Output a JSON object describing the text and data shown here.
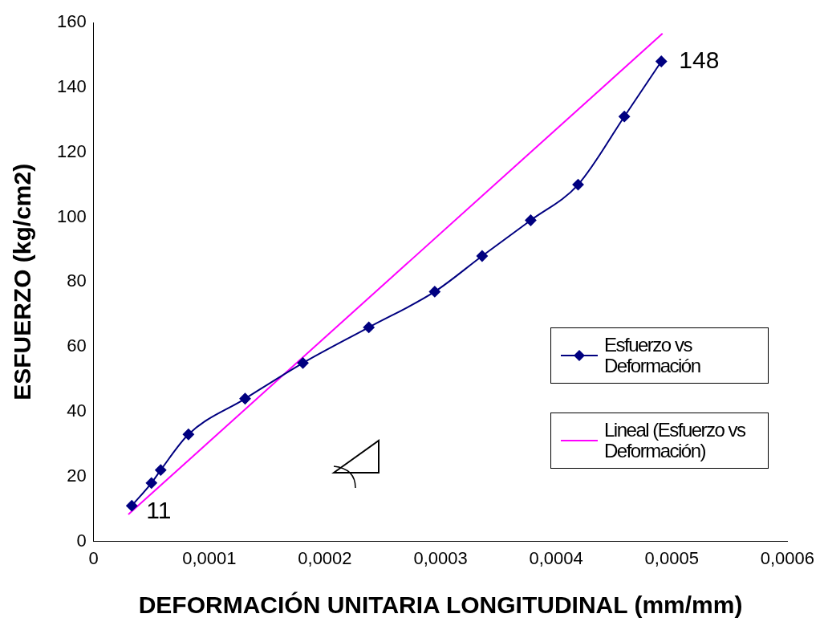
{
  "chart_data": {
    "type": "line",
    "xlabel": "DEFORMACIÓN UNITARIA LONGITUDINAL (mm/mm)",
    "ylabel": "ESFUERZO (kg/cm2)",
    "xlim": [
      0,
      0.0006
    ],
    "xticks": [
      0,
      {
        "value": 0.0001,
        "label": "0,0001"
      },
      {
        "value": 0.0002,
        "label": "0,0002"
      },
      {
        "value": 0.0003,
        "label": "0,0003"
      },
      {
        "value": 0.0004,
        "label": "0,0004"
      },
      {
        "value": 0.0005,
        "label": "0,0005"
      },
      {
        "value": 0.0006,
        "label": "0,0006"
      }
    ],
    "ylim": [
      0,
      160
    ],
    "yticks": [
      0,
      20,
      40,
      60,
      80,
      100,
      120,
      140,
      160
    ],
    "grid": false,
    "legend": "right",
    "series": [
      {
        "name": "Esfuerzo vs Deformación",
        "color": "#000080",
        "marker": "diamond",
        "x": [
          3.3e-05,
          5e-05,
          5.8e-05,
          8.2e-05,
          0.000131,
          0.000181,
          0.000238,
          0.000295,
          0.000336,
          0.000378,
          0.000419,
          0.000459,
          0.000491
        ],
        "values": [
          11,
          18,
          22,
          33,
          44,
          55,
          66,
          77,
          88,
          99,
          110,
          131,
          148
        ]
      },
      {
        "name": "Lineal (Esfuerzo vs Deformación)",
        "color": "#ff00ff",
        "marker": "none",
        "x": [
          3e-05,
          0.000492
        ],
        "values": [
          8.3,
          156.6
        ]
      }
    ],
    "annotations": [
      {
        "text": "11",
        "x": 3.3e-05,
        "y": 11
      },
      {
        "text": "148",
        "x": 0.000491,
        "y": 148
      }
    ]
  }
}
